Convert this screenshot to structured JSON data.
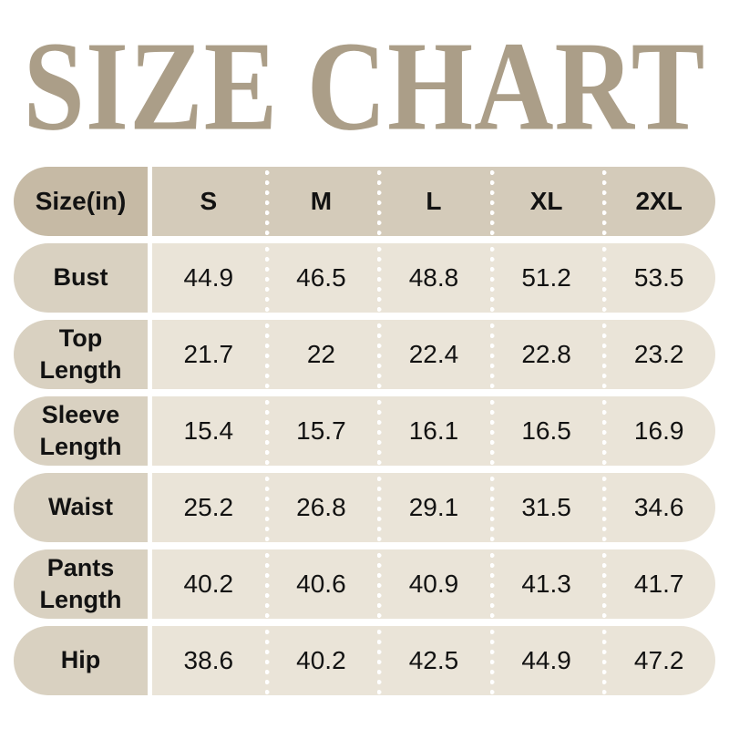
{
  "title": "SIZE CHART",
  "colors": {
    "background": "#ffffff",
    "title_text": "#ab9e88",
    "header_label_bg": "#c6baa5",
    "header_cells_bg": "#d4cbba",
    "row_label_bg": "#d9d1c1",
    "row_cells_bg": "#eae4d8",
    "separator_dots": "#ffffff",
    "table_text": "#121212"
  },
  "table": {
    "header": {
      "label": "Size(in)",
      "columns": [
        "S",
        "M",
        "L",
        "XL",
        "2XL"
      ]
    },
    "rows": [
      {
        "label": "Bust",
        "values": [
          "44.9",
          "46.5",
          "48.8",
          "51.2",
          "53.5"
        ]
      },
      {
        "label": "Top Length",
        "values": [
          "21.7",
          "22",
          "22.4",
          "22.8",
          "23.2"
        ]
      },
      {
        "label": "Sleeve Length",
        "values": [
          "15.4",
          "15.7",
          "16.1",
          "16.5",
          "16.9"
        ]
      },
      {
        "label": "Waist",
        "values": [
          "25.2",
          "26.8",
          "29.1",
          "31.5",
          "34.6"
        ]
      },
      {
        "label": "Pants Length",
        "values": [
          "40.2",
          "40.6",
          "40.9",
          "41.3",
          "41.7"
        ]
      },
      {
        "label": "Hip",
        "values": [
          "38.6",
          "40.2",
          "42.5",
          "44.9",
          "47.2"
        ]
      }
    ]
  },
  "chart_data": {
    "type": "table",
    "title": "SIZE CHART",
    "columns": [
      "Size(in)",
      "S",
      "M",
      "L",
      "XL",
      "2XL"
    ],
    "rows": [
      [
        "Bust",
        44.9,
        46.5,
        48.8,
        51.2,
        53.5
      ],
      [
        "Top Length",
        21.7,
        22,
        22.4,
        22.8,
        23.2
      ],
      [
        "Sleeve Length",
        15.4,
        15.7,
        16.1,
        16.5,
        16.9
      ],
      [
        "Waist",
        25.2,
        26.8,
        29.1,
        31.5,
        34.6
      ],
      [
        "Pants Length",
        40.2,
        40.6,
        40.9,
        41.3,
        41.7
      ],
      [
        "Hip",
        38.6,
        40.2,
        42.5,
        44.9,
        47.2
      ]
    ]
  }
}
